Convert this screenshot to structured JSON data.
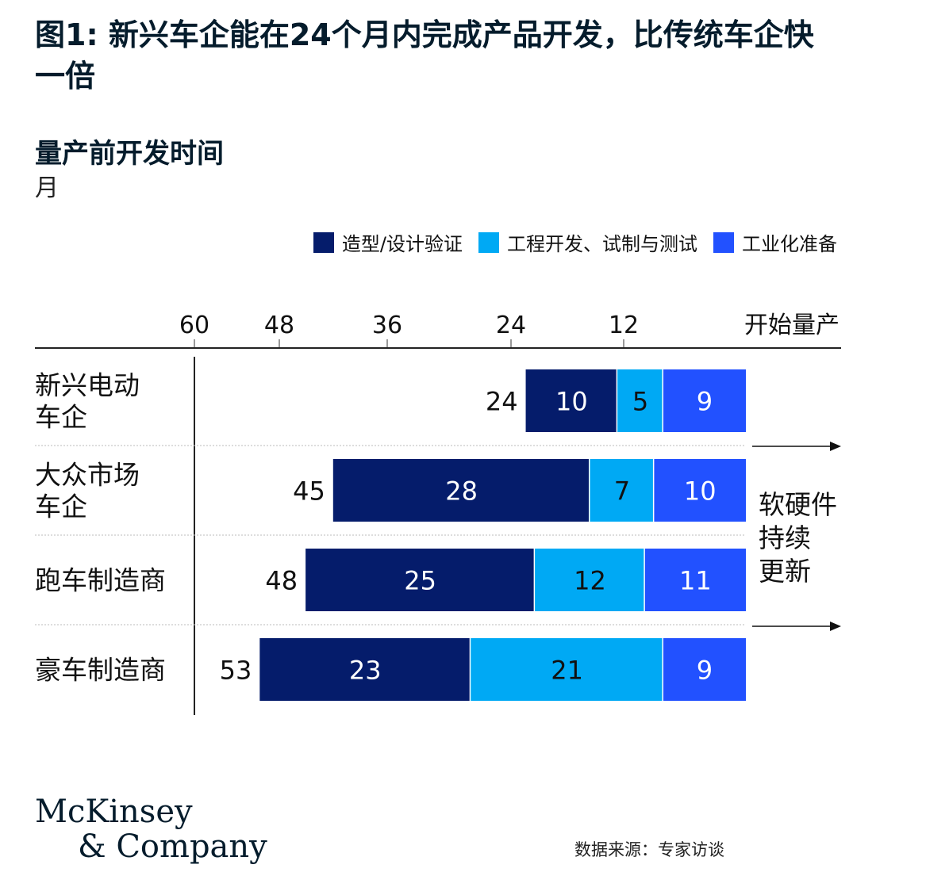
{
  "title": "图1: 新兴车企能在24个月内完成产品开发，比传统车企快一倍",
  "subtitle": "量产前开发时间",
  "unit": "月",
  "legend": [
    {
      "label": "造型/设计验证",
      "color": "#051c6b"
    },
    {
      "label": "工程开发、试制与测试",
      "color": "#00a9f4"
    },
    {
      "label": "工业化准备",
      "color": "#2251ff"
    }
  ],
  "axis": {
    "ticks": [
      "60",
      "48",
      "36",
      "24",
      "12"
    ],
    "end_label": "开始量产"
  },
  "side_note": [
    "软硬件",
    "持续",
    "更新"
  ],
  "source": "数据来源：专家访谈",
  "logo": {
    "line1": "McKinsey",
    "line2": "& Company"
  },
  "chart_data": {
    "type": "bar",
    "orientation": "horizontal-stacked",
    "title": "量产前开发时间",
    "ylabel": "月",
    "xlim": [
      60,
      0
    ],
    "categories": [
      [
        "新兴电动",
        "车企"
      ],
      [
        "大众市场",
        "车企"
      ],
      [
        "跑车制造商"
      ],
      [
        "豪车制造商"
      ]
    ],
    "totals": [
      24,
      45,
      48,
      53
    ],
    "series": [
      {
        "name": "造型/设计验证",
        "values": [
          10,
          28,
          25,
          23
        ]
      },
      {
        "name": "工程开发、试制与测试",
        "values": [
          5,
          7,
          12,
          21
        ]
      },
      {
        "name": "工业化准备",
        "values": [
          9,
          10,
          11,
          9
        ]
      }
    ]
  }
}
